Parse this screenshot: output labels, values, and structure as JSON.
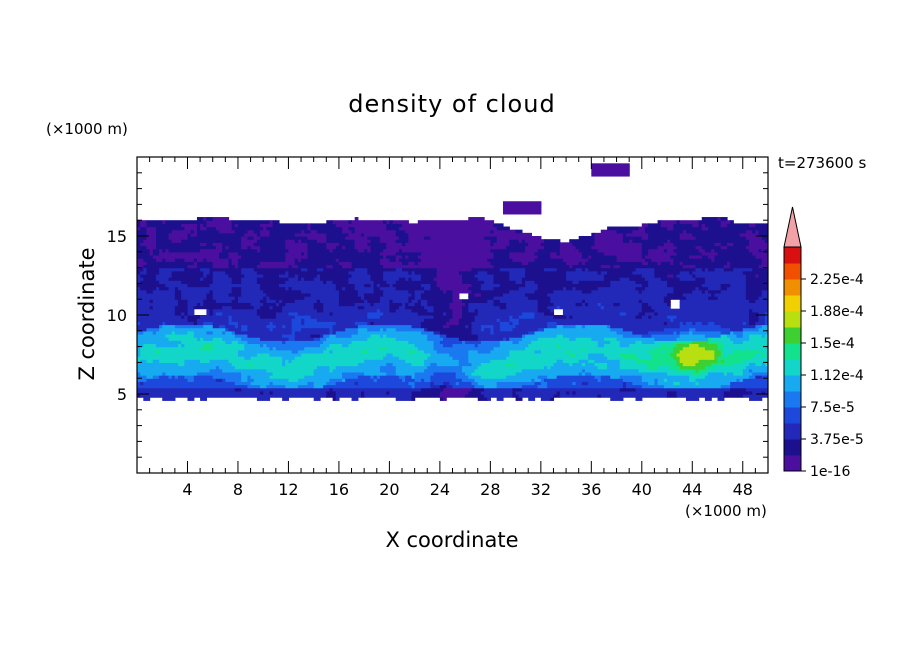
{
  "chart_data": {
    "type": "heatmap",
    "title": "density of cloud",
    "xlabel": "X coordinate",
    "ylabel": "Z coordinate",
    "x_unit": "(×1000 m)",
    "y_unit": "(×1000 m)",
    "time_label": "t=273600 s",
    "xlim": [
      0,
      50
    ],
    "ylim": [
      0,
      20
    ],
    "x_ticks": [
      4,
      8,
      12,
      16,
      20,
      24,
      28,
      32,
      36,
      40,
      44,
      48
    ],
    "y_ticks": [
      5,
      10,
      15
    ],
    "colorbar": {
      "levels": [
        1e-16,
        1.875e-05,
        3.75e-05,
        5.625e-05,
        7.5e-05,
        9.375e-05,
        0.0001125,
        0.00013125,
        0.00015,
        0.00016875,
        0.0001875,
        0.00020625,
        0.000225,
        0.00024375
      ],
      "tick_labels": [
        "1e-16",
        "3.75e-5",
        "7.5e-5",
        "1.12e-4",
        "1.5e-4",
        "1.88e-4",
        "2.25e-4"
      ],
      "tick_levels": [
        0,
        2,
        4,
        6,
        8,
        10,
        12
      ],
      "colors": [
        "#4b0fa0",
        "#1c108f",
        "#2228b8",
        "#1c48dc",
        "#1a78f0",
        "#18aaf0",
        "#12d6c8",
        "#12e28c",
        "#3cd030",
        "#b8e010",
        "#f0d000",
        "#f09000",
        "#f05000",
        "#d81010"
      ],
      "extend_color": "#f2a2a6"
    },
    "cloud": {
      "top_km": 16,
      "base_km": 4.8,
      "bright_band_km": [
        6.0,
        8.6
      ],
      "peak_value": 0.00016,
      "peak_x_km": 44,
      "peak_z_km": 7.8,
      "isolated_patches": [
        {
          "x": 37.5,
          "z": 19.2,
          "level": 0
        },
        {
          "x": 38.5,
          "z": 14.2,
          "level": 0
        },
        {
          "x": 30.5,
          "z": 16.8,
          "level": 0
        }
      ]
    }
  }
}
